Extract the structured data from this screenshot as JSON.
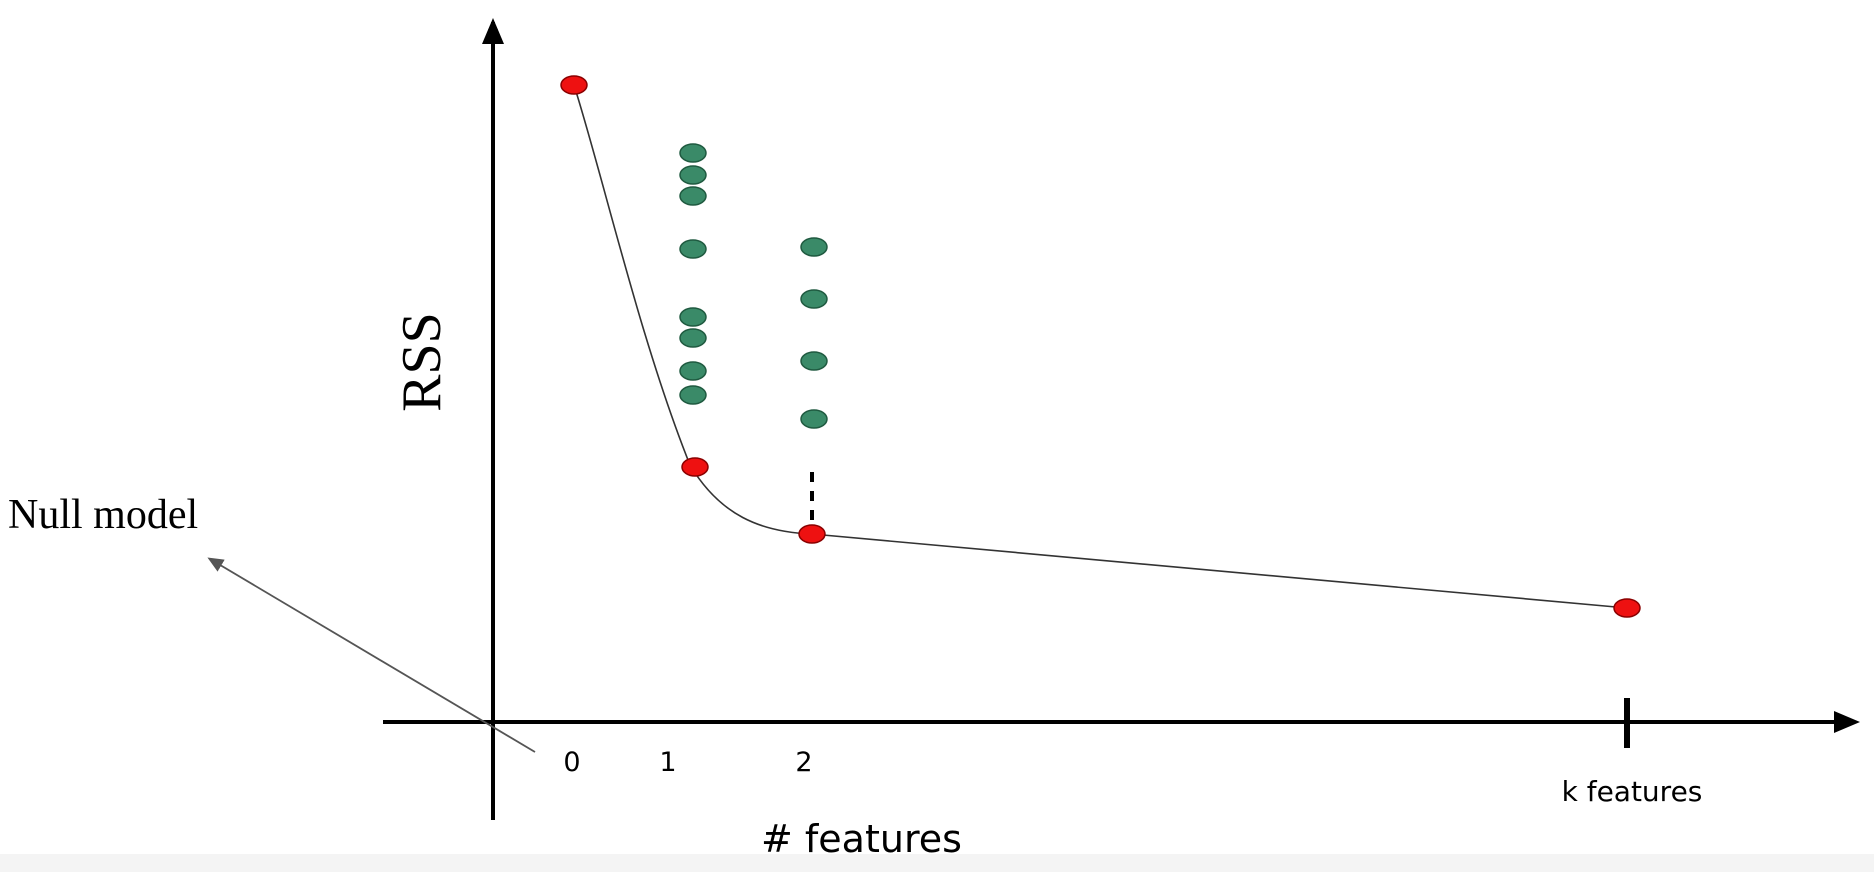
{
  "labels": {
    "y_axis": "RSS",
    "x_axis": "# features",
    "tick_0": "0",
    "tick_1": "1",
    "tick_2": "2",
    "tick_k": "k features",
    "annotation": "Null model"
  },
  "colors": {
    "best_model": "#ee1111",
    "candidate_model": "#3a8a68",
    "axis": "#000000",
    "curve": "#333333"
  }
}
